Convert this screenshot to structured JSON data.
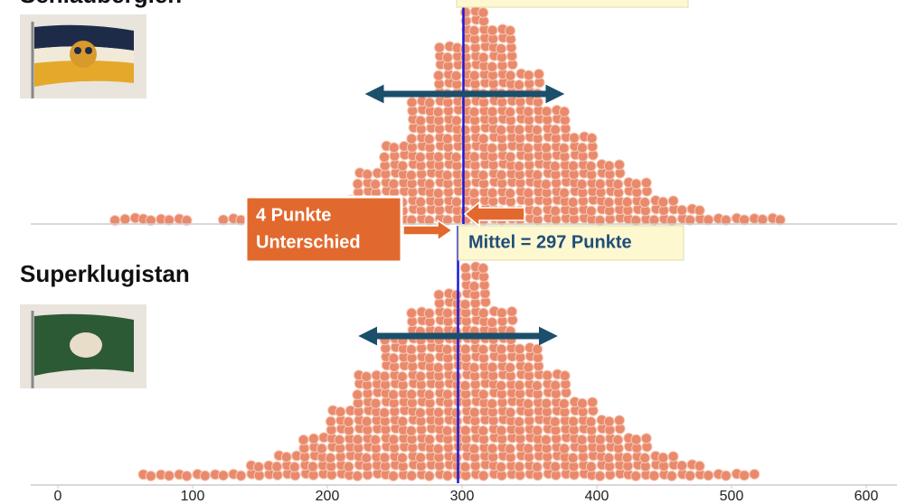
{
  "chart_data": {
    "type": "dot-histogram",
    "xlim": [
      0,
      600
    ],
    "xticks": [
      0,
      100,
      200,
      300,
      400,
      500,
      600
    ],
    "bins": [
      40,
      60,
      80,
      100,
      120,
      140,
      160,
      180,
      200,
      220,
      240,
      260,
      280,
      300,
      320,
      340,
      360,
      380,
      400,
      420,
      440,
      460,
      480,
      500,
      520,
      540
    ],
    "color": "#e98a6c",
    "series": [
      {
        "name": "Schlaubergien",
        "counts": [
          1,
          1,
          1,
          0,
          1,
          1,
          2,
          2,
          3,
          6,
          9,
          14,
          20,
          24,
          22,
          17,
          13,
          10,
          7,
          5,
          3,
          2,
          1,
          1,
          1
        ],
        "mean": 301,
        "spread": [
          235,
          369
        ]
      },
      {
        "name": "Superklugistan",
        "counts": [
          0,
          1,
          1,
          1,
          1,
          2,
          3,
          5,
          8,
          12,
          16,
          19,
          21,
          24,
          19,
          15,
          12,
          9,
          7,
          5,
          3,
          2,
          1,
          1,
          0
        ],
        "mean": 297,
        "mean_label": "Mittel = 297 Punkte",
        "spread": [
          230,
          364
        ]
      }
    ],
    "annotation": [
      "4 Punkte",
      "Unterschied"
    ]
  }
}
